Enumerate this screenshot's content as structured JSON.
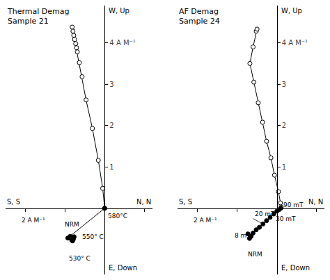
{
  "chart_data": [
    {
      "type": "line",
      "title": "Thermal Demag",
      "subtitle": "Sample 21",
      "xlabel": {
        "left": "S, S",
        "right": "N, N"
      },
      "ylabel": {
        "top": "W, Up",
        "bottom": "E, Down"
      },
      "xlim": [
        -2.5,
        1.2
      ],
      "ylim": [
        -1.6,
        4.9
      ],
      "xticks": [
        -2,
        -1,
        1
      ],
      "yticks": [
        1,
        2,
        3,
        {
          "value": 4,
          "label": "4 A M⁻¹"
        }
      ],
      "tick_labels": "y",
      "grid": false,
      "series": [
        {
          "marker": "open circle",
          "line_style": "solid",
          "color": "black",
          "x": [
            -0.82,
            -0.8,
            -0.78,
            -0.76,
            -0.73,
            -0.71,
            -0.69,
            -0.64,
            -0.57,
            -0.47,
            -0.31,
            -0.16,
            -0.05,
            0.0
          ],
          "values": [
            4.38,
            4.28,
            4.18,
            4.08,
            3.98,
            3.88,
            3.78,
            3.52,
            3.18,
            2.62,
            1.93,
            1.16,
            0.48,
            0.0
          ]
        },
        {
          "marker": "filled circle",
          "line_style": "solid",
          "color": "black",
          "x": [
            0.0,
            -0.93,
            -0.87,
            -0.85,
            -0.83,
            -0.81,
            -0.79,
            -0.77
          ],
          "values": [
            0.0,
            -0.72,
            -0.68,
            -0.73,
            -0.77,
            -0.79,
            -0.75,
            -0.69
          ]
        }
      ],
      "annotations": [
        {
          "text": "2 A M⁻¹",
          "x": -1.8,
          "y": -0.17,
          "anchor": "top center"
        },
        {
          "text": "580°C",
          "x": 0.04,
          "y": -0.07
        },
        {
          "text": "550° C",
          "x": -0.6,
          "y": -0.58
        },
        {
          "text": "530° C",
          "x": -0.93,
          "y": -1.1
        },
        {
          "text": "NRM",
          "x": -1.05,
          "y": -0.5,
          "anchor": "bottom left"
        }
      ]
    },
    {
      "type": "line",
      "title": "AF Demag",
      "subtitle": "Sample 24",
      "xlabel": {
        "left": "S, S",
        "right": "N, N"
      },
      "ylabel": {
        "top": "W, Up",
        "bottom": "E, Down"
      },
      "xlim": [
        -2.5,
        1.2
      ],
      "ylim": [
        -1.6,
        4.9
      ],
      "xticks": [
        -2,
        -1,
        1
      ],
      "yticks": [
        1,
        2,
        3,
        {
          "value": 4,
          "label": "4 A M⁻¹"
        }
      ],
      "tick_labels": "y",
      "grid": false,
      "series": [
        {
          "marker": "open circle",
          "line_style": "solid",
          "color": "black",
          "x": [
            -0.52,
            -0.5,
            -0.6,
            -0.68,
            -0.58,
            -0.47,
            -0.36,
            -0.26,
            -0.15,
            -0.06,
            0.04,
            0.09,
            0.11
          ],
          "values": [
            4.28,
            4.33,
            3.9,
            3.5,
            3.05,
            2.55,
            2.08,
            1.62,
            1.22,
            0.8,
            0.4,
            0.13,
            0.03
          ]
        },
        {
          "marker": "filled circle",
          "line_style": "solid",
          "color": "black",
          "x": [
            -0.73,
            -0.69,
            -0.65,
            -0.6,
            -0.52,
            -0.44,
            -0.35,
            -0.26,
            -0.17,
            -0.08,
            0.0,
            0.06,
            0.1
          ],
          "values": [
            -0.62,
            -0.73,
            -0.68,
            -0.6,
            -0.52,
            -0.46,
            -0.38,
            -0.3,
            -0.22,
            -0.14,
            -0.07,
            -0.03,
            0.0
          ]
        }
      ],
      "annotations": [
        {
          "text": "2 A M⁻¹",
          "x": -1.8,
          "y": -0.17,
          "anchor": "top center"
        },
        {
          "text": "90 mT",
          "x": 0.1,
          "y": 0.0,
          "text_x": 0.12,
          "text_y": 0.08,
          "anchor": "middle left"
        },
        {
          "text": "30 mT",
          "x": -0.07,
          "y": -0.14
        },
        {
          "text": "20 mT",
          "x": -0.35,
          "y": -0.38,
          "text_x": -0.6,
          "text_y": -0.25,
          "anchor": "bottom left"
        },
        {
          "text": "8 mT",
          "x": -1.1,
          "y": -0.55
        },
        {
          "text": "NRM",
          "x": -0.55,
          "y": -1.0,
          "anchor": "top center"
        }
      ]
    }
  ]
}
